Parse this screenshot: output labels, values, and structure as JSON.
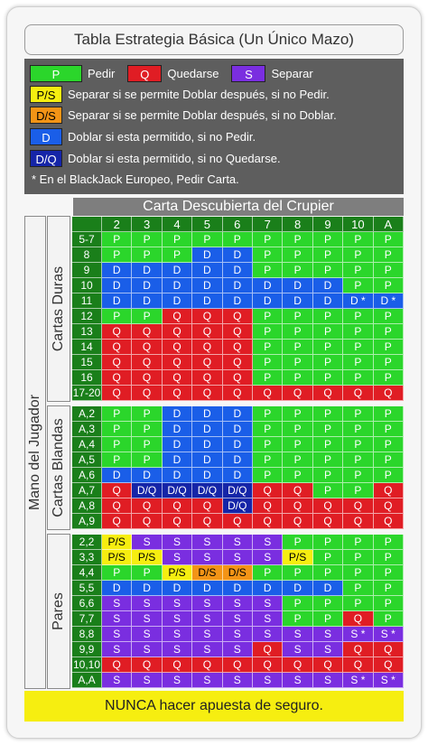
{
  "title": "Tabla Estrategia Básica (Un Único Mazo)",
  "legend": {
    "row1": [
      {
        "code": "P",
        "text": "Pedir",
        "cls": "c-P"
      },
      {
        "code": "Q",
        "text": "Quedarse",
        "cls": "c-Q"
      },
      {
        "code": "S",
        "text": "Separar",
        "cls": "c-S"
      }
    ],
    "rows": [
      {
        "code": "P/S",
        "text": "Separar si se permite Doblar después, si no Pedir.",
        "cls": "c-PS"
      },
      {
        "code": "D/S",
        "text": "Separar si se permite Doblar después, si no Doblar.",
        "cls": "c-DS"
      },
      {
        "code": "D",
        "text": "Doblar si esta permitido, si no Pedir.",
        "cls": "c-D"
      },
      {
        "code": "D/Q",
        "text": "Doblar si esta permitido, si no Quedarse.",
        "cls": "c-DQ"
      }
    ],
    "note": "* En el BlackJack Europeo, Pedir Carta."
  },
  "dealer_header": "Carta Descubierta del Crupier",
  "player_label": "Mano del Jugador",
  "dealer_cards": [
    "2",
    "3",
    "4",
    "5",
    "6",
    "7",
    "8",
    "9",
    "10",
    "A"
  ],
  "sections": [
    {
      "label": "Cartas Duras",
      "rows": [
        {
          "hand": "5-7",
          "cells": [
            "P",
            "P",
            "P",
            "P",
            "P",
            "P",
            "P",
            "P",
            "P",
            "P"
          ]
        },
        {
          "hand": "8",
          "cells": [
            "P",
            "P",
            "P",
            "D",
            "D",
            "P",
            "P",
            "P",
            "P",
            "P"
          ]
        },
        {
          "hand": "9",
          "cells": [
            "D",
            "D",
            "D",
            "D",
            "D",
            "P",
            "P",
            "P",
            "P",
            "P"
          ]
        },
        {
          "hand": "10",
          "cells": [
            "D",
            "D",
            "D",
            "D",
            "D",
            "D",
            "D",
            "D",
            "P",
            "P"
          ]
        },
        {
          "hand": "11",
          "cells": [
            "D",
            "D",
            "D",
            "D",
            "D",
            "D",
            "D",
            "D",
            "D *",
            "D *"
          ]
        },
        {
          "hand": "12",
          "cells": [
            "P",
            "P",
            "Q",
            "Q",
            "Q",
            "P",
            "P",
            "P",
            "P",
            "P"
          ]
        },
        {
          "hand": "13",
          "cells": [
            "Q",
            "Q",
            "Q",
            "Q",
            "Q",
            "P",
            "P",
            "P",
            "P",
            "P"
          ]
        },
        {
          "hand": "14",
          "cells": [
            "Q",
            "Q",
            "Q",
            "Q",
            "Q",
            "P",
            "P",
            "P",
            "P",
            "P"
          ]
        },
        {
          "hand": "15",
          "cells": [
            "Q",
            "Q",
            "Q",
            "Q",
            "Q",
            "P",
            "P",
            "P",
            "P",
            "P"
          ]
        },
        {
          "hand": "16",
          "cells": [
            "Q",
            "Q",
            "Q",
            "Q",
            "Q",
            "P",
            "P",
            "P",
            "P",
            "P"
          ]
        },
        {
          "hand": "17-20",
          "cells": [
            "Q",
            "Q",
            "Q",
            "Q",
            "Q",
            "Q",
            "Q",
            "Q",
            "Q",
            "Q"
          ]
        }
      ]
    },
    {
      "label": "Cartas Blandas",
      "rows": [
        {
          "hand": "A,2",
          "cells": [
            "P",
            "P",
            "D",
            "D",
            "D",
            "P",
            "P",
            "P",
            "P",
            "P"
          ]
        },
        {
          "hand": "A,3",
          "cells": [
            "P",
            "P",
            "D",
            "D",
            "D",
            "P",
            "P",
            "P",
            "P",
            "P"
          ]
        },
        {
          "hand": "A,4",
          "cells": [
            "P",
            "P",
            "D",
            "D",
            "D",
            "P",
            "P",
            "P",
            "P",
            "P"
          ]
        },
        {
          "hand": "A,5",
          "cells": [
            "P",
            "P",
            "D",
            "D",
            "D",
            "P",
            "P",
            "P",
            "P",
            "P"
          ]
        },
        {
          "hand": "A,6",
          "cells": [
            "D",
            "D",
            "D",
            "D",
            "D",
            "P",
            "P",
            "P",
            "P",
            "P"
          ]
        },
        {
          "hand": "A,7",
          "cells": [
            "Q",
            "D/Q",
            "D/Q",
            "D/Q",
            "D/Q",
            "Q",
            "Q",
            "P",
            "P",
            "Q"
          ]
        },
        {
          "hand": "A,8",
          "cells": [
            "Q",
            "Q",
            "Q",
            "Q",
            "D/Q",
            "Q",
            "Q",
            "Q",
            "Q",
            "Q"
          ]
        },
        {
          "hand": "A,9",
          "cells": [
            "Q",
            "Q",
            "Q",
            "Q",
            "Q",
            "Q",
            "Q",
            "Q",
            "Q",
            "Q"
          ]
        }
      ]
    },
    {
      "label": "Pares",
      "rows": [
        {
          "hand": "2,2",
          "cells": [
            "P/S",
            "S",
            "S",
            "S",
            "S",
            "S",
            "P",
            "P",
            "P",
            "P"
          ]
        },
        {
          "hand": "3,3",
          "cells": [
            "P/S",
            "P/S",
            "S",
            "S",
            "S",
            "S",
            "P/S",
            "P",
            "P",
            "P"
          ]
        },
        {
          "hand": "4,4",
          "cells": [
            "P",
            "P",
            "P/S",
            "D/S",
            "D/S",
            "P",
            "P",
            "P",
            "P",
            "P"
          ]
        },
        {
          "hand": "5,5",
          "cells": [
            "D",
            "D",
            "D",
            "D",
            "D",
            "D",
            "D",
            "D",
            "P",
            "P"
          ]
        },
        {
          "hand": "6,6",
          "cells": [
            "S",
            "S",
            "S",
            "S",
            "S",
            "S",
            "P",
            "P",
            "P",
            "P"
          ]
        },
        {
          "hand": "7,7",
          "cells": [
            "S",
            "S",
            "S",
            "S",
            "S",
            "S",
            "P",
            "P",
            "Q",
            "P"
          ]
        },
        {
          "hand": "8,8",
          "cells": [
            "S",
            "S",
            "S",
            "S",
            "S",
            "S",
            "S",
            "S",
            "S *",
            "S *"
          ]
        },
        {
          "hand": "9,9",
          "cells": [
            "S",
            "S",
            "S",
            "S",
            "S",
            "Q",
            "S",
            "S",
            "Q",
            "Q"
          ]
        },
        {
          "hand": "10,10",
          "cells": [
            "Q",
            "Q",
            "Q",
            "Q",
            "Q",
            "Q",
            "Q",
            "Q",
            "Q",
            "Q"
          ]
        },
        {
          "hand": "A,A",
          "cells": [
            "S",
            "S",
            "S",
            "S",
            "S",
            "S",
            "S",
            "S",
            "S *",
            "S *"
          ]
        }
      ]
    }
  ],
  "insurance": "NUNCA hacer apuesta de seguro."
}
